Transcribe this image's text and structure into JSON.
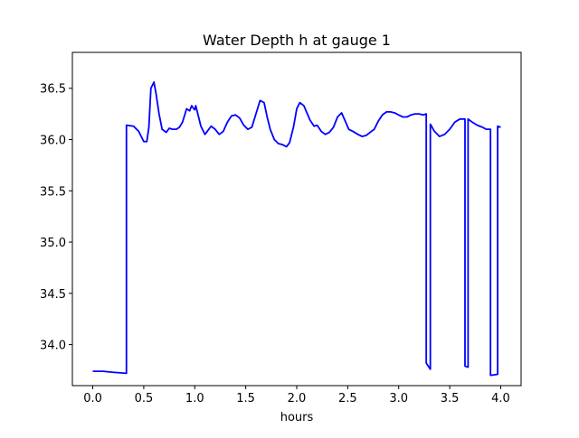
{
  "chart_data": {
    "type": "line",
    "title": "Water Depth h at gauge 1",
    "xlabel": "hours",
    "ylabel": "",
    "xlim": [
      -0.2,
      4.2
    ],
    "ylim": [
      33.6,
      36.85
    ],
    "x_ticks": [
      0.0,
      0.5,
      1.0,
      1.5,
      2.0,
      2.5,
      3.0,
      3.5,
      4.0
    ],
    "x_tick_labels": [
      "0.0",
      "0.5",
      "1.0",
      "1.5",
      "2.0",
      "2.5",
      "3.0",
      "3.5",
      "4.0"
    ],
    "y_ticks": [
      34.0,
      34.5,
      35.0,
      35.5,
      36.0,
      36.5
    ],
    "y_tick_labels": [
      "34.0",
      "34.5",
      "35.0",
      "35.5",
      "36.0",
      "36.5"
    ],
    "grid": false,
    "legend": "none",
    "series": [
      {
        "color": "#0000ff",
        "x": [
          0.0,
          0.1,
          0.2,
          0.33,
          0.33,
          0.4,
          0.45,
          0.5,
          0.53,
          0.55,
          0.57,
          0.6,
          0.62,
          0.65,
          0.68,
          0.72,
          0.75,
          0.78,
          0.82,
          0.85,
          0.88,
          0.92,
          0.95,
          0.97,
          0.99,
          1.0,
          1.01,
          1.03,
          1.06,
          1.1,
          1.13,
          1.16,
          1.2,
          1.24,
          1.28,
          1.32,
          1.36,
          1.4,
          1.44,
          1.48,
          1.52,
          1.56,
          1.6,
          1.64,
          1.68,
          1.71,
          1.74,
          1.78,
          1.82,
          1.86,
          1.9,
          1.93,
          1.97,
          2.0,
          2.03,
          2.07,
          2.1,
          2.13,
          2.17,
          2.2,
          2.24,
          2.28,
          2.32,
          2.36,
          2.4,
          2.44,
          2.48,
          2.51,
          2.55,
          2.6,
          2.64,
          2.68,
          2.72,
          2.76,
          2.8,
          2.84,
          2.88,
          2.92,
          2.96,
          3.0,
          3.04,
          3.08,
          3.12,
          3.16,
          3.2,
          3.24,
          3.27,
          3.27,
          3.31,
          3.31,
          3.35,
          3.4,
          3.45,
          3.5,
          3.55,
          3.6,
          3.65,
          3.65,
          3.68,
          3.68,
          3.72,
          3.77,
          3.82,
          3.86,
          3.9,
          3.9,
          3.97,
          3.97,
          4.0
        ],
        "y": [
          33.74,
          33.74,
          33.73,
          33.72,
          36.14,
          36.13,
          36.08,
          35.98,
          35.98,
          36.12,
          36.5,
          36.56,
          36.45,
          36.25,
          36.1,
          36.07,
          36.11,
          36.1,
          36.1,
          36.12,
          36.17,
          36.3,
          36.28,
          36.33,
          36.3,
          36.29,
          36.33,
          36.25,
          36.13,
          36.05,
          36.09,
          36.13,
          36.1,
          36.05,
          36.08,
          36.17,
          36.23,
          36.24,
          36.21,
          36.14,
          36.1,
          36.12,
          36.25,
          36.38,
          36.36,
          36.22,
          36.1,
          36.0,
          35.96,
          35.95,
          35.93,
          35.97,
          36.13,
          36.3,
          36.36,
          36.33,
          36.26,
          36.19,
          36.13,
          36.14,
          36.08,
          36.05,
          36.07,
          36.12,
          36.22,
          36.26,
          36.17,
          36.1,
          36.08,
          36.05,
          36.03,
          36.04,
          36.07,
          36.1,
          36.18,
          36.24,
          36.27,
          36.27,
          36.26,
          36.24,
          36.22,
          36.22,
          36.24,
          36.25,
          36.25,
          36.24,
          36.25,
          33.82,
          33.76,
          36.15,
          36.08,
          36.03,
          36.05,
          36.1,
          36.17,
          36.2,
          36.2,
          33.79,
          33.78,
          36.2,
          36.17,
          36.14,
          36.12,
          36.1,
          36.1,
          33.7,
          33.71,
          36.13,
          36.12
        ]
      }
    ]
  }
}
